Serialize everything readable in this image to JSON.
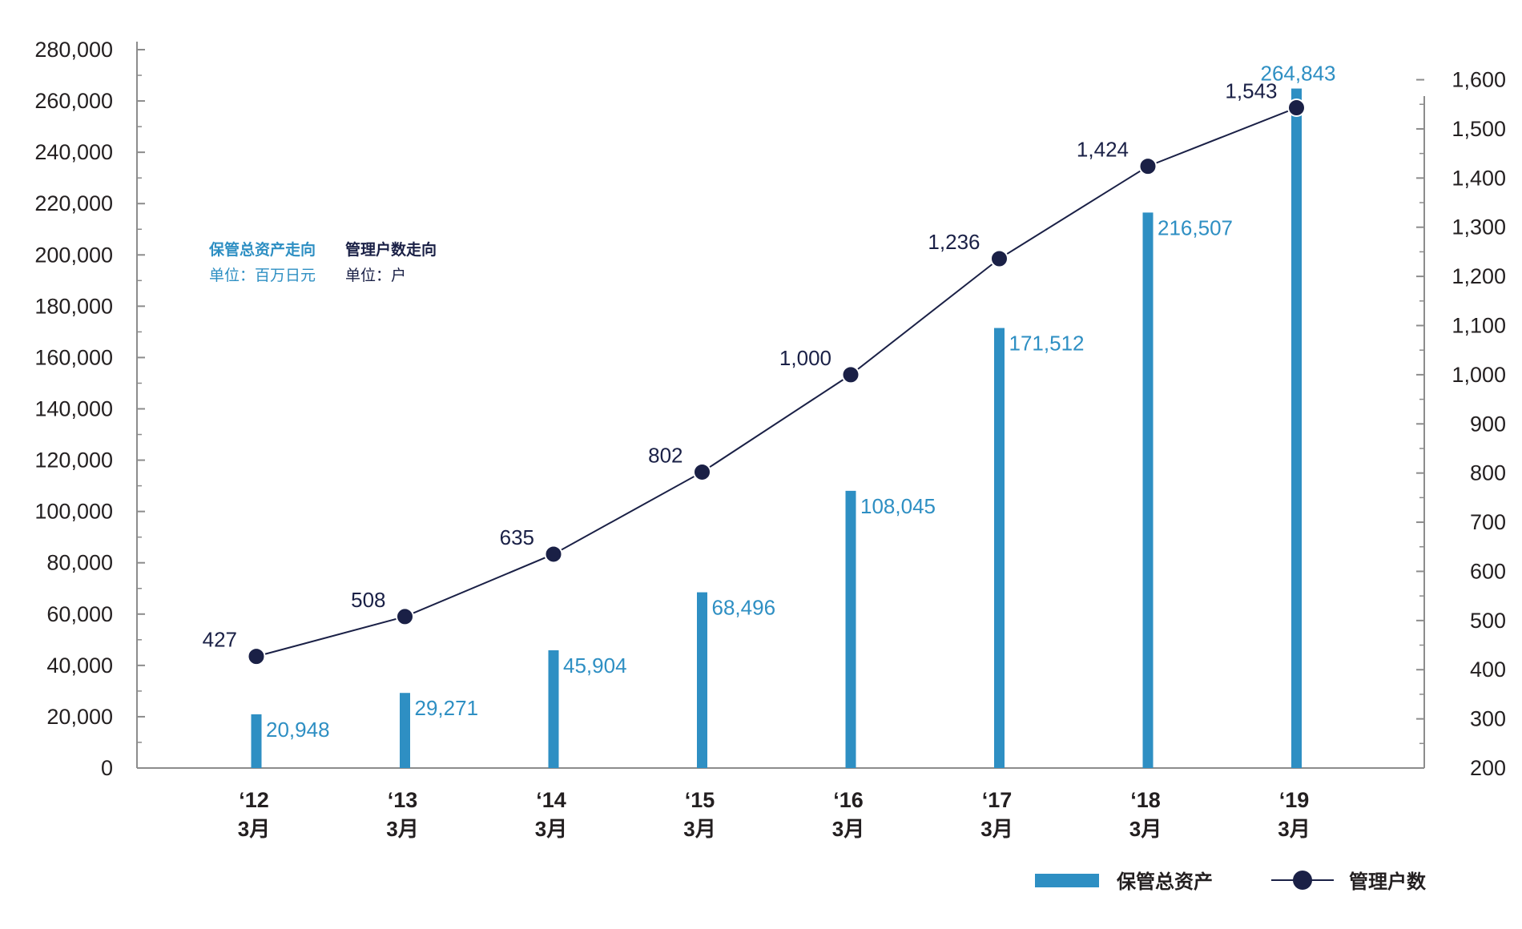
{
  "colors": {
    "bar": "#2e8fc3",
    "line": "#1a2046",
    "axis": "#8c8c8c",
    "text": "#231f20"
  },
  "notes": {
    "bar_title": "保管总资产走向",
    "bar_unit": "单位：百万日元",
    "line_title": "管理户数走向",
    "line_unit": "单位：户"
  },
  "chart_data": {
    "type": "bar",
    "categories": [
      "'12 3月",
      "'13 3月",
      "'14 3月",
      "'15 3月",
      "'16 3月",
      "'17 3月",
      "'18 3月",
      "'19 3月"
    ],
    "x_labels_year": [
      "‘12",
      "‘13",
      "‘14",
      "‘15",
      "‘16",
      "‘17",
      "‘18",
      "‘19"
    ],
    "x_labels_month": [
      "3月",
      "3月",
      "3月",
      "3月",
      "3月",
      "3月",
      "3月",
      "3月"
    ],
    "series": [
      {
        "name": "保管总资产",
        "type": "bar",
        "axis": "left",
        "values": [
          20948,
          29271,
          45904,
          68496,
          108045,
          171512,
          216507,
          264843
        ],
        "labels": [
          "20,948",
          "29,271",
          "45,904",
          "68,496",
          "108,045",
          "171,512",
          "216,507",
          "264,843"
        ]
      },
      {
        "name": "管理户数",
        "type": "line",
        "axis": "right",
        "values": [
          427,
          508,
          635,
          802,
          1000,
          1236,
          1424,
          1543
        ],
        "labels": [
          "427",
          "508",
          "635",
          "802",
          "1,000",
          "1,236",
          "1,424",
          "1,543"
        ]
      }
    ],
    "y_left": {
      "range": [
        0,
        280000
      ],
      "ticks": [
        0,
        20000,
        40000,
        60000,
        80000,
        100000,
        120000,
        140000,
        160000,
        180000,
        200000,
        220000,
        240000,
        260000,
        280000
      ],
      "tick_labels": [
        "0",
        "20,000",
        "40,000",
        "60,000",
        "80,000",
        "100,000",
        "120,000",
        "140,000",
        "160,000",
        "180,000",
        "200,000",
        "220,000",
        "240,000",
        "260,000",
        "280,000"
      ]
    },
    "y_right": {
      "range": [
        200,
        1640
      ],
      "ticks": [
        200,
        300,
        400,
        500,
        600,
        700,
        800,
        900,
        1000,
        1100,
        1200,
        1300,
        1400,
        1500,
        1600
      ],
      "tick_labels": [
        "200",
        "300",
        "400",
        "500",
        "600",
        "700",
        "800",
        "900",
        "1,000",
        "1,100",
        "1,200",
        "1,300",
        "1,400",
        "1,500",
        "1,600"
      ]
    },
    "legend": {
      "position": "bottom-right",
      "items": [
        {
          "label": "保管总资产",
          "kind": "bar"
        },
        {
          "label": "管理户数",
          "kind": "line"
        }
      ]
    },
    "grid": false
  }
}
